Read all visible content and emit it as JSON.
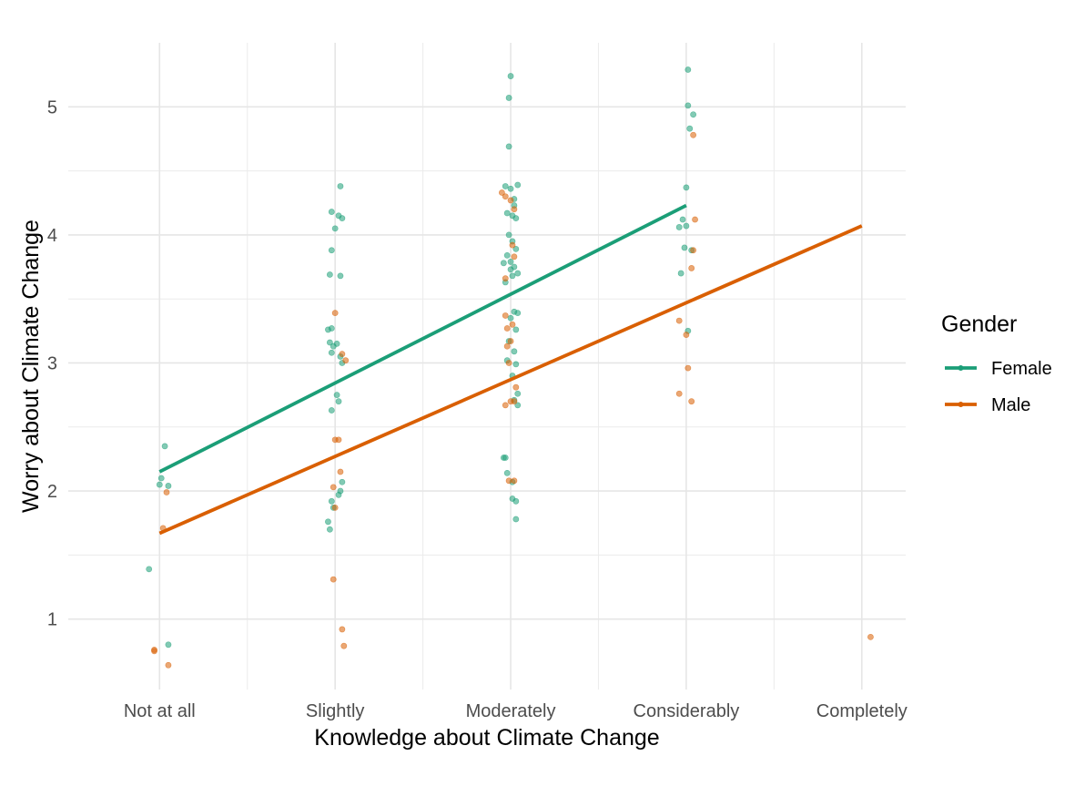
{
  "chart_data": {
    "type": "scatter",
    "xlabel": "Knowledge about Climate Change",
    "ylabel": "Worry about Climate Change",
    "categories": [
      "Not at all",
      "Slightly",
      "Moderately",
      "Considerably",
      "Completely"
    ],
    "yticks": [
      1,
      2,
      3,
      4,
      5
    ],
    "ylim": [
      0.45,
      5.5
    ],
    "grid": true,
    "legend": {
      "title": "Gender",
      "position": "right"
    },
    "series": [
      {
        "name": "Female",
        "color": "#1b9e77",
        "fit": [
          [
            1,
            2.15
          ],
          [
            4,
            4.23
          ]
        ],
        "points": [
          [
            0.94,
            1.39
          ],
          [
            1.03,
            2.35
          ],
          [
            1.01,
            2.1
          ],
          [
            1.0,
            2.05
          ],
          [
            1.05,
            2.04
          ],
          [
            1.05,
            0.8
          ],
          [
            1.96,
            3.26
          ],
          [
            1.98,
            3.27
          ],
          [
            1.97,
            3.16
          ],
          [
            1.99,
            3.13
          ],
          [
            2.01,
            3.15
          ],
          [
            1.98,
            3.08
          ],
          [
            2.03,
            3.05
          ],
          [
            2.04,
            3.0
          ],
          [
            1.97,
            3.69
          ],
          [
            2.03,
            3.68
          ],
          [
            1.98,
            3.88
          ],
          [
            2.0,
            4.05
          ],
          [
            2.02,
            4.15
          ],
          [
            2.04,
            4.13
          ],
          [
            1.98,
            4.18
          ],
          [
            2.03,
            4.38
          ],
          [
            2.01,
            2.75
          ],
          [
            2.02,
            2.7
          ],
          [
            1.98,
            2.63
          ],
          [
            2.04,
            2.07
          ],
          [
            2.03,
            2.0
          ],
          [
            2.02,
            1.97
          ],
          [
            1.98,
            1.92
          ],
          [
            1.99,
            1.87
          ],
          [
            1.96,
            1.76
          ],
          [
            1.97,
            1.7
          ],
          [
            3.0,
            5.24
          ],
          [
            2.99,
            5.07
          ],
          [
            2.99,
            4.69
          ],
          [
            2.97,
            4.38
          ],
          [
            3.04,
            4.39
          ],
          [
            3.0,
            4.36
          ],
          [
            3.02,
            4.28
          ],
          [
            3.02,
            4.23
          ],
          [
            2.98,
            4.17
          ],
          [
            3.01,
            4.15
          ],
          [
            3.03,
            4.13
          ],
          [
            2.99,
            4.0
          ],
          [
            3.01,
            3.95
          ],
          [
            3.03,
            3.89
          ],
          [
            2.98,
            3.84
          ],
          [
            3.0,
            3.79
          ],
          [
            2.96,
            3.78
          ],
          [
            3.02,
            3.75
          ],
          [
            3.0,
            3.73
          ],
          [
            3.04,
            3.7
          ],
          [
            3.01,
            3.68
          ],
          [
            2.97,
            3.63
          ],
          [
            3.02,
            3.4
          ],
          [
            3.04,
            3.39
          ],
          [
            3.0,
            3.35
          ],
          [
            3.03,
            3.26
          ],
          [
            2.99,
            3.17
          ],
          [
            3.02,
            3.09
          ],
          [
            2.98,
            3.02
          ],
          [
            3.03,
            2.99
          ],
          [
            3.01,
            2.9
          ],
          [
            3.04,
            2.76
          ],
          [
            3.02,
            2.71
          ],
          [
            3.04,
            2.67
          ],
          [
            2.96,
            2.26
          ],
          [
            2.97,
            2.26
          ],
          [
            2.98,
            2.14
          ],
          [
            3.01,
            2.07
          ],
          [
            3.01,
            1.94
          ],
          [
            3.03,
            1.92
          ],
          [
            3.03,
            1.78
          ],
          [
            4.01,
            5.29
          ],
          [
            4.01,
            5.01
          ],
          [
            4.04,
            4.94
          ],
          [
            4.02,
            4.83
          ],
          [
            4.0,
            4.37
          ],
          [
            3.98,
            4.12
          ],
          [
            3.96,
            4.06
          ],
          [
            4.0,
            4.07
          ],
          [
            3.99,
            3.9
          ],
          [
            4.03,
            3.88
          ],
          [
            3.97,
            3.7
          ],
          [
            4.01,
            3.25
          ]
        ]
      },
      {
        "name": "Male",
        "color": "#d95f02",
        "fit": [
          [
            1,
            1.67
          ],
          [
            5,
            4.07
          ]
        ],
        "points": [
          [
            0.97,
            0.76
          ],
          [
            0.97,
            0.75
          ],
          [
            1.05,
            0.64
          ],
          [
            1.04,
            1.99
          ],
          [
            1.02,
            1.71
          ],
          [
            2.0,
            3.39
          ],
          [
            2.04,
            3.07
          ],
          [
            2.06,
            3.02
          ],
          [
            2.0,
            2.4
          ],
          [
            2.02,
            2.4
          ],
          [
            2.03,
            2.15
          ],
          [
            1.99,
            2.03
          ],
          [
            2.0,
            1.87
          ],
          [
            1.99,
            1.31
          ],
          [
            2.04,
            0.92
          ],
          [
            2.05,
            0.79
          ],
          [
            2.95,
            4.33
          ],
          [
            2.97,
            4.3
          ],
          [
            3.0,
            4.27
          ],
          [
            3.02,
            4.2
          ],
          [
            3.01,
            3.92
          ],
          [
            3.02,
            3.83
          ],
          [
            2.97,
            3.66
          ],
          [
            2.97,
            3.37
          ],
          [
            3.01,
            3.3
          ],
          [
            2.98,
            3.27
          ],
          [
            3.0,
            3.17
          ],
          [
            2.98,
            3.13
          ],
          [
            2.99,
            3.0
          ],
          [
            3.03,
            2.81
          ],
          [
            3.0,
            2.7
          ],
          [
            2.97,
            2.67
          ],
          [
            3.02,
            2.7
          ],
          [
            2.99,
            2.08
          ],
          [
            3.02,
            2.08
          ],
          [
            4.04,
            4.78
          ],
          [
            4.05,
            4.12
          ],
          [
            4.04,
            3.88
          ],
          [
            4.03,
            3.74
          ],
          [
            3.96,
            3.33
          ],
          [
            4.0,
            3.22
          ],
          [
            4.01,
            2.96
          ],
          [
            3.96,
            2.76
          ],
          [
            4.03,
            2.7
          ],
          [
            5.05,
            0.86
          ]
        ]
      }
    ]
  }
}
